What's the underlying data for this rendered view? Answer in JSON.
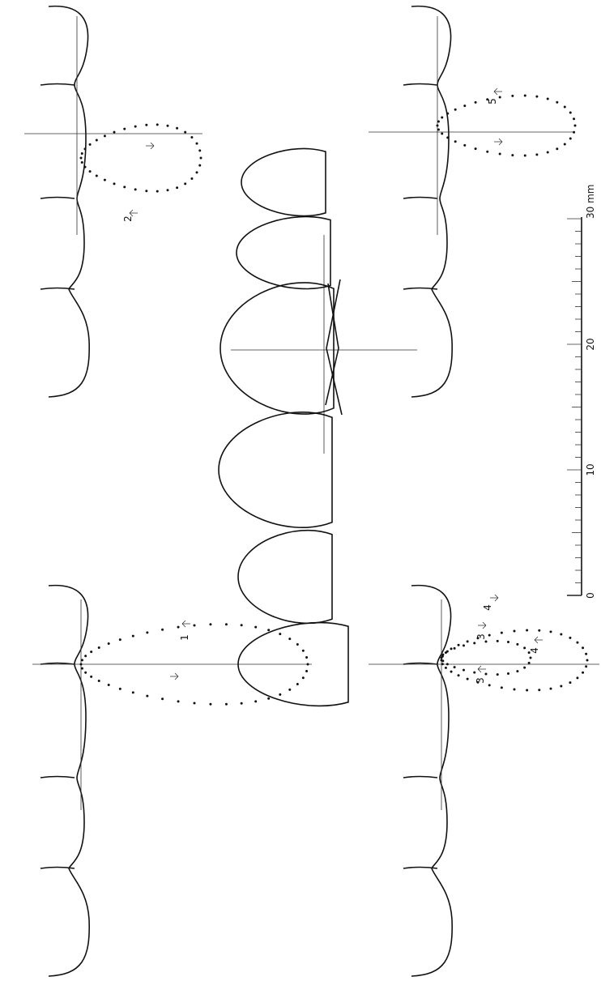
{
  "trace_labels": [
    "1",
    "2",
    "3",
    "3",
    "4",
    "4",
    "5"
  ],
  "scale": {
    "labels": [
      "0",
      "10",
      "20",
      "30 mm"
    ]
  }
}
